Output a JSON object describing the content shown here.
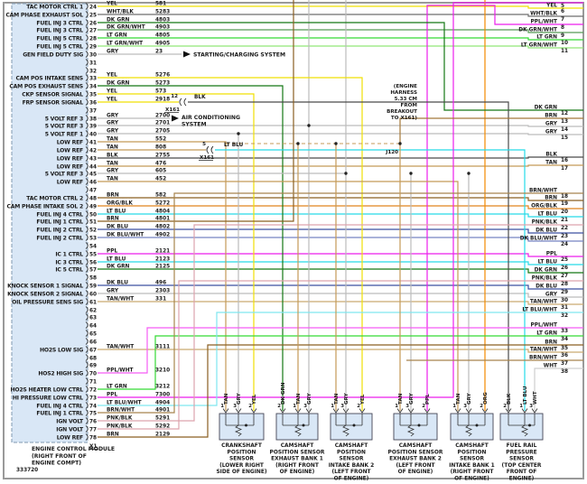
{
  "diagram": {
    "number": "333720",
    "module": {
      "title_lines": [
        "ENGINE CONTROL MODULE",
        "(RIGHT FRONT OF",
        "ENGINE COMPT)"
      ],
      "connector_label": "X1"
    },
    "notes": {
      "starting_charging": "STARTING/CHARGING SYSTEM",
      "air_conditioning_lines": [
        "AIR CONDITIONING",
        "SYSTEM"
      ],
      "harness_note_lines": [
        "(ENGINE",
        "HARNESS",
        "5.33 CM",
        "FROM",
        "BREAKOUT",
        "TO X161)"
      ],
      "junction_label": "J120",
      "inline_connector_label": "X161"
    },
    "wire_palette": {
      "YEL": "#f0e005",
      "WHT/BLK": "#6e6e6e",
      "DK GRN": "#157815",
      "DK GRN/WHT": "#569a56",
      "LT GRN": "#35d935",
      "LT GRN/WHT": "#90e878",
      "GRY": "#bcbcbc",
      "TAN": "#c49a58",
      "TAN/WHT": "#cbab72",
      "BLK": "#4a4a4a",
      "BRN": "#8a5f22",
      "BRN/WHT": "#a8854d",
      "ORG/BLK": "#e0851f",
      "ORG": "#f28a00",
      "LT BLU": "#26dbe8",
      "LT BLU/WHT": "#7fe6ef",
      "DK BLU": "#3c50a0",
      "DK BLU/WHT": "#7684c2",
      "PPL": "#ec1fec",
      "PPL/WHT": "#f55cf5",
      "PNK/BLK": "#dda3ad",
      "WHT": "#cfcfcf",
      "TAN_BRN": "#a5793a"
    },
    "ecm_pins": [
      {
        "pin": "24",
        "signal": "TAC MOTOR CTRL 1",
        "color": "YEL",
        "circuit": "581"
      },
      {
        "pin": "25",
        "signal": "CAM PHASE EXHAUST SOL",
        "color": "WHT/BLK",
        "circuit": "5283"
      },
      {
        "pin": "26",
        "signal": "FUEL INJ 3 CTRL",
        "color": "DK GRN",
        "circuit": "4803"
      },
      {
        "pin": "27",
        "signal": "FUEL INJ 3 CTRL",
        "color": "DK GRN/WHT",
        "circuit": "4903"
      },
      {
        "pin": "28",
        "signal": "FUEL INJ 5 CTRL",
        "color": "LT GRN",
        "circuit": "4805"
      },
      {
        "pin": "29",
        "signal": "FUEL INJ 5 CTRL",
        "color": "LT GRN/WHT",
        "circuit": "4905"
      },
      {
        "pin": "30",
        "signal": "GEN FIELD DUTY SIG",
        "color": "GRY",
        "circuit": "23"
      },
      {
        "pin": "31",
        "signal": "",
        "color": "",
        "circuit": ""
      },
      {
        "pin": "32",
        "signal": "",
        "color": "",
        "circuit": ""
      },
      {
        "pin": "33",
        "signal": "CAM POS INTAKE SENS",
        "color": "YEL",
        "circuit": "5276"
      },
      {
        "pin": "34",
        "signal": "CAM POS EXHAUST SENS",
        "color": "DK GRN",
        "circuit": "5273"
      },
      {
        "pin": "35",
        "signal": "CKP SENSOR SIGNAL",
        "color": "YEL",
        "circuit": "573"
      },
      {
        "pin": "36",
        "signal": "FRP SENSOR SIGNAL",
        "color": "YEL",
        "circuit": "2918"
      },
      {
        "pin": "37",
        "signal": "",
        "color": "",
        "circuit": ""
      },
      {
        "pin": "38",
        "signal": "5 VOLT REF 3",
        "color": "GRY",
        "circuit": "2700"
      },
      {
        "pin": "39",
        "signal": "5 VOLT REF 3",
        "color": "GRY",
        "circuit": "2701"
      },
      {
        "pin": "40",
        "signal": "5 VOLT REF 1",
        "color": "GRY",
        "circuit": "2705"
      },
      {
        "pin": "41",
        "signal": "LOW REF",
        "color": "TAN",
        "circuit": "552"
      },
      {
        "pin": "42",
        "signal": "LOW REF",
        "color": "TAN",
        "circuit": "808"
      },
      {
        "pin": "43",
        "signal": "LOW REF",
        "color": "BLK",
        "circuit": "2755"
      },
      {
        "pin": "44",
        "signal": "LOW REF",
        "color": "TAN",
        "circuit": "476"
      },
      {
        "pin": "45",
        "signal": "5 VOLT REF 3",
        "color": "GRY",
        "circuit": "605"
      },
      {
        "pin": "46",
        "signal": "LOW REF",
        "color": "TAN",
        "circuit": "452"
      },
      {
        "pin": "47",
        "signal": "",
        "color": "",
        "circuit": ""
      },
      {
        "pin": "48",
        "signal": "TAC MOTOR CTRL 2",
        "color": "BRN",
        "circuit": "582"
      },
      {
        "pin": "49",
        "signal": "CAM PHASE INTAKE SOL 2",
        "color": "ORG/BLK",
        "circuit": "5272"
      },
      {
        "pin": "50",
        "signal": "FUEL INJ 4 CTRL",
        "color": "LT BLU",
        "circuit": "4804"
      },
      {
        "pin": "51",
        "signal": "FUEL INJ 1 CTRL",
        "color": "BRN",
        "circuit": "4801"
      },
      {
        "pin": "52",
        "signal": "FUEL INJ 2 CTRL",
        "color": "DK BLU",
        "circuit": "4802"
      },
      {
        "pin": "53",
        "signal": "FUEL INJ 2 CTRL",
        "color": "DK BLU/WHT",
        "circuit": "4902"
      },
      {
        "pin": "54",
        "signal": "",
        "color": "",
        "circuit": ""
      },
      {
        "pin": "55",
        "signal": "IC 1 CTRL",
        "color": "PPL",
        "circuit": "2121"
      },
      {
        "pin": "56",
        "signal": "IC 3 CTRL",
        "color": "LT BLU",
        "circuit": "2123"
      },
      {
        "pin": "57",
        "signal": "IC 5 CTRL",
        "color": "DK GRN",
        "circuit": "2125"
      },
      {
        "pin": "58",
        "signal": "",
        "color": "",
        "circuit": ""
      },
      {
        "pin": "59",
        "signal": "KNOCK SENSOR 1 SIGNAL",
        "color": "DK BLU",
        "circuit": "496"
      },
      {
        "pin": "60",
        "signal": "KNOCK SENSOR 2 SIGNAL",
        "color": "GRY",
        "circuit": "2303"
      },
      {
        "pin": "61",
        "signal": "OIL PRESSURE SENS SIG",
        "color": "TAN/WHT",
        "circuit": "331"
      },
      {
        "pin": "62",
        "signal": "",
        "color": "",
        "circuit": ""
      },
      {
        "pin": "63",
        "signal": "",
        "color": "",
        "circuit": ""
      },
      {
        "pin": "64",
        "signal": "",
        "color": "",
        "circuit": ""
      },
      {
        "pin": "65",
        "signal": "",
        "color": "",
        "circuit": ""
      },
      {
        "pin": "66",
        "signal": "",
        "color": "",
        "circuit": ""
      },
      {
        "pin": "67",
        "signal": "HO2S LOW SIG",
        "color": "TAN/WHT",
        "circuit": "3111"
      },
      {
        "pin": "68",
        "signal": "",
        "color": "",
        "circuit": ""
      },
      {
        "pin": "69",
        "signal": "",
        "color": "",
        "circuit": ""
      },
      {
        "pin": "70",
        "signal": "HOS2 HIGH SIG",
        "color": "PPL/WHT",
        "circuit": "3210"
      },
      {
        "pin": "71",
        "signal": "",
        "color": "",
        "circuit": ""
      },
      {
        "pin": "72",
        "signal": "HO2S HEATER LOW CTRL",
        "color": "LT GRN",
        "circuit": "3212"
      },
      {
        "pin": "73",
        "signal": "HI PRESSURE LOW CTRL",
        "color": "PPL",
        "circuit": "7300"
      },
      {
        "pin": "74",
        "signal": "FUEL INJ 4 CTRL",
        "color": "LT BLU/WHT",
        "circuit": "4904"
      },
      {
        "pin": "75",
        "signal": "FUEL INJ 1 CTRL",
        "color": "BRN/WHT",
        "circuit": "4901"
      },
      {
        "pin": "76",
        "signal": "IGN VOLT",
        "color": "PNK/BLK",
        "circuit": "5291"
      },
      {
        "pin": "77",
        "signal": "IGN VOLT",
        "color": "PNK/BLK",
        "circuit": "5292"
      },
      {
        "pin": "78",
        "signal": "LOW REF",
        "color": "BRN",
        "circuit": "2129"
      }
    ],
    "inline_connectors": [
      {
        "at_pin": "36",
        "x161_pin": "12",
        "continues_as": "BLK"
      },
      {
        "at_pin": "42",
        "x161_pin": "5",
        "continues_as": "LT BLU"
      }
    ],
    "right_exits": [
      {
        "pin": "5",
        "color": ""
      },
      {
        "pin": "6",
        "color": "YEL"
      },
      {
        "pin": "7",
        "color": "WHT/BLK"
      },
      {
        "pin": "8",
        "color": "PPL/WHT"
      },
      {
        "pin": "9",
        "color": "DK GRN/WHT"
      },
      {
        "pin": "10",
        "color": "LT GRN"
      },
      {
        "pin": "11",
        "color": "LT GRN/WHT"
      },
      {
        "pin": "12",
        "color": "DK GRN"
      },
      {
        "pin": "13",
        "color": "BRN"
      },
      {
        "pin": "14",
        "color": "GRY"
      },
      {
        "pin": "15",
        "color": "GRY"
      },
      {
        "pin": "16",
        "color": "BLK"
      },
      {
        "pin": "17",
        "color": "TAN"
      },
      {
        "pin": "18",
        "color": "BRN/WHT"
      },
      {
        "pin": "19",
        "color": "BRN"
      },
      {
        "pin": "20",
        "color": "ORG/BLK"
      },
      {
        "pin": "21",
        "color": "LT BLU"
      },
      {
        "pin": "22",
        "color": "PNK/BLK"
      },
      {
        "pin": "23",
        "color": "DK BLU"
      },
      {
        "pin": "24",
        "color": "DK BLU/WHT"
      },
      {
        "pin": "25",
        "color": "PPL"
      },
      {
        "pin": "26",
        "color": "LT BLU"
      },
      {
        "pin": "27",
        "color": "DK GRN"
      },
      {
        "pin": "28",
        "color": "PNK/BLK"
      },
      {
        "pin": "29",
        "color": "DK BLU"
      },
      {
        "pin": "30",
        "color": "GRY"
      },
      {
        "pin": "31",
        "color": "TAN/WHT"
      },
      {
        "pin": "32",
        "color": "LT BLU/WHT"
      },
      {
        "pin": "33",
        "color": "PPL/WHT"
      },
      {
        "pin": "34",
        "color": "LT GRN"
      },
      {
        "pin": "35",
        "color": "BRN"
      },
      {
        "pin": "36",
        "color": "TAN/WHT"
      },
      {
        "pin": "37",
        "color": "BRN/WHT"
      },
      {
        "pin": "38",
        "color": "WHT"
      }
    ],
    "sensors": [
      {
        "pins": [
          {
            "num": "1",
            "color": "TAN"
          },
          {
            "num": "3",
            "color": "GRY"
          },
          {
            "num": "2",
            "color": "YEL"
          }
        ],
        "name_lines": [
          "CRANKSHAFT",
          "POSITION",
          "SENSOR",
          "(LOWER RIGHT",
          "SIDE OF ENGINE)"
        ]
      },
      {
        "pins": [
          {
            "num": "2",
            "color": "DK GRN"
          },
          {
            "num": "1",
            "color": "TAN"
          },
          {
            "num": "3",
            "color": "GRY"
          }
        ],
        "name_lines": [
          "CAMSHAFT",
          "POSITION SENSOR",
          "EXHAUST BANK 1",
          "(RIGHT FRONT",
          "OF ENGINE)"
        ]
      },
      {
        "pins": [
          {
            "num": "1",
            "color": "TAN"
          },
          {
            "num": "3",
            "color": "GRY"
          },
          {
            "num": "2",
            "color": "YEL"
          }
        ],
        "name_lines": [
          "CAMSHAFT",
          "POSITION",
          "SENSOR",
          "INTAKE BANK 2",
          "(LEFT FRONT",
          "OF ENGINE)"
        ]
      },
      {
        "pins": [
          {
            "num": "1",
            "color": "TAN"
          },
          {
            "num": "3",
            "color": "GRY"
          },
          {
            "num": "2",
            "color": "PPL"
          }
        ],
        "name_lines": [
          "CAMSHAFT",
          "POSITION SENSOR",
          "EXHAUST BANK 2",
          "(LEFT FRONT",
          "OF ENGINE)"
        ]
      },
      {
        "pins": [
          {
            "num": "1",
            "color": "TAN"
          },
          {
            "num": "3",
            "color": "GRY"
          },
          {
            "num": "2",
            "color": "ORG"
          }
        ],
        "name_lines": [
          "CAMSHAFT",
          "POSITION",
          "SENSOR",
          "INTAKE BANK 1",
          "(RIGHT FRONT",
          "OF ENGINE)"
        ]
      },
      {
        "pins": [
          {
            "num": "2",
            "color": "BLK"
          },
          {
            "num": "1",
            "color": "LT BLU"
          },
          {
            "num": "3",
            "color": "WHT"
          }
        ],
        "name_lines": [
          "FUEL RAIL",
          "PRESSURE",
          "SENSOR",
          "(TOP CENTER",
          "FRONT OF",
          "ENGINE)"
        ]
      }
    ]
  }
}
